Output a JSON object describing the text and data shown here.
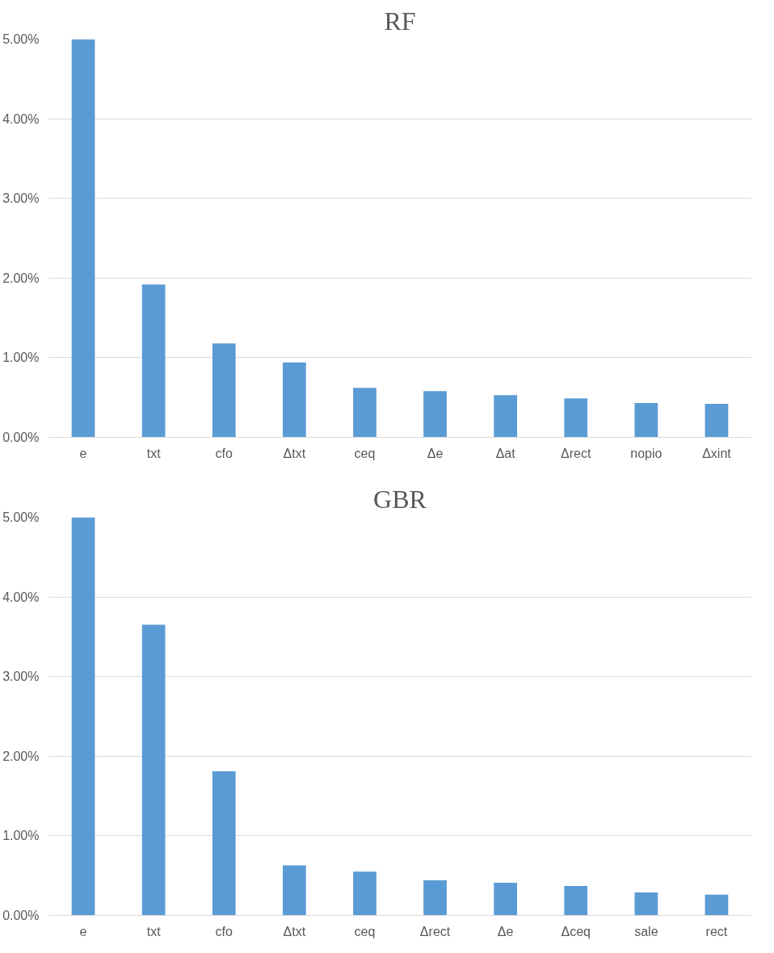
{
  "chart_data": [
    {
      "type": "bar",
      "title": "RF",
      "categories": [
        "e",
        "txt",
        "cfo",
        "Δtxt",
        "ceq",
        "Δe",
        "Δat",
        "Δrect",
        "nopio",
        "Δxint"
      ],
      "color": "#5b9bd5",
      "values": [
        5.0,
        1.92,
        1.18,
        0.94,
        0.62,
        0.58,
        0.53,
        0.49,
        0.43,
        0.42
      ],
      "ylim": [
        0,
        5
      ],
      "yticks": [
        {
          "value": 0,
          "label": "0.00%"
        },
        {
          "value": 1,
          "label": "1.00%"
        },
        {
          "value": 2,
          "label": "2.00%"
        },
        {
          "value": 3,
          "label": "3.00%"
        },
        {
          "value": 4,
          "label": "4.00%"
        },
        {
          "value": 5,
          "label": "5.00%"
        }
      ],
      "grid": "y"
    },
    {
      "type": "bar",
      "title": "GBR",
      "categories": [
        "e",
        "txt",
        "cfo",
        "Δtxt",
        "ceq",
        "Δrect",
        "Δe",
        "Δceq",
        "sale",
        "rect"
      ],
      "color": "#5b9bd5",
      "values": [
        5.0,
        3.65,
        1.81,
        0.63,
        0.55,
        0.44,
        0.41,
        0.37,
        0.29,
        0.26
      ],
      "ylim": [
        0,
        5
      ],
      "yticks": [
        {
          "value": 0,
          "label": "0.00%"
        },
        {
          "value": 1,
          "label": "1.00%"
        },
        {
          "value": 2,
          "label": "2.00%"
        },
        {
          "value": 3,
          "label": "3.00%"
        },
        {
          "value": 4,
          "label": "4.00%"
        },
        {
          "value": 5,
          "label": "5.00%"
        }
      ],
      "grid": "y"
    }
  ]
}
